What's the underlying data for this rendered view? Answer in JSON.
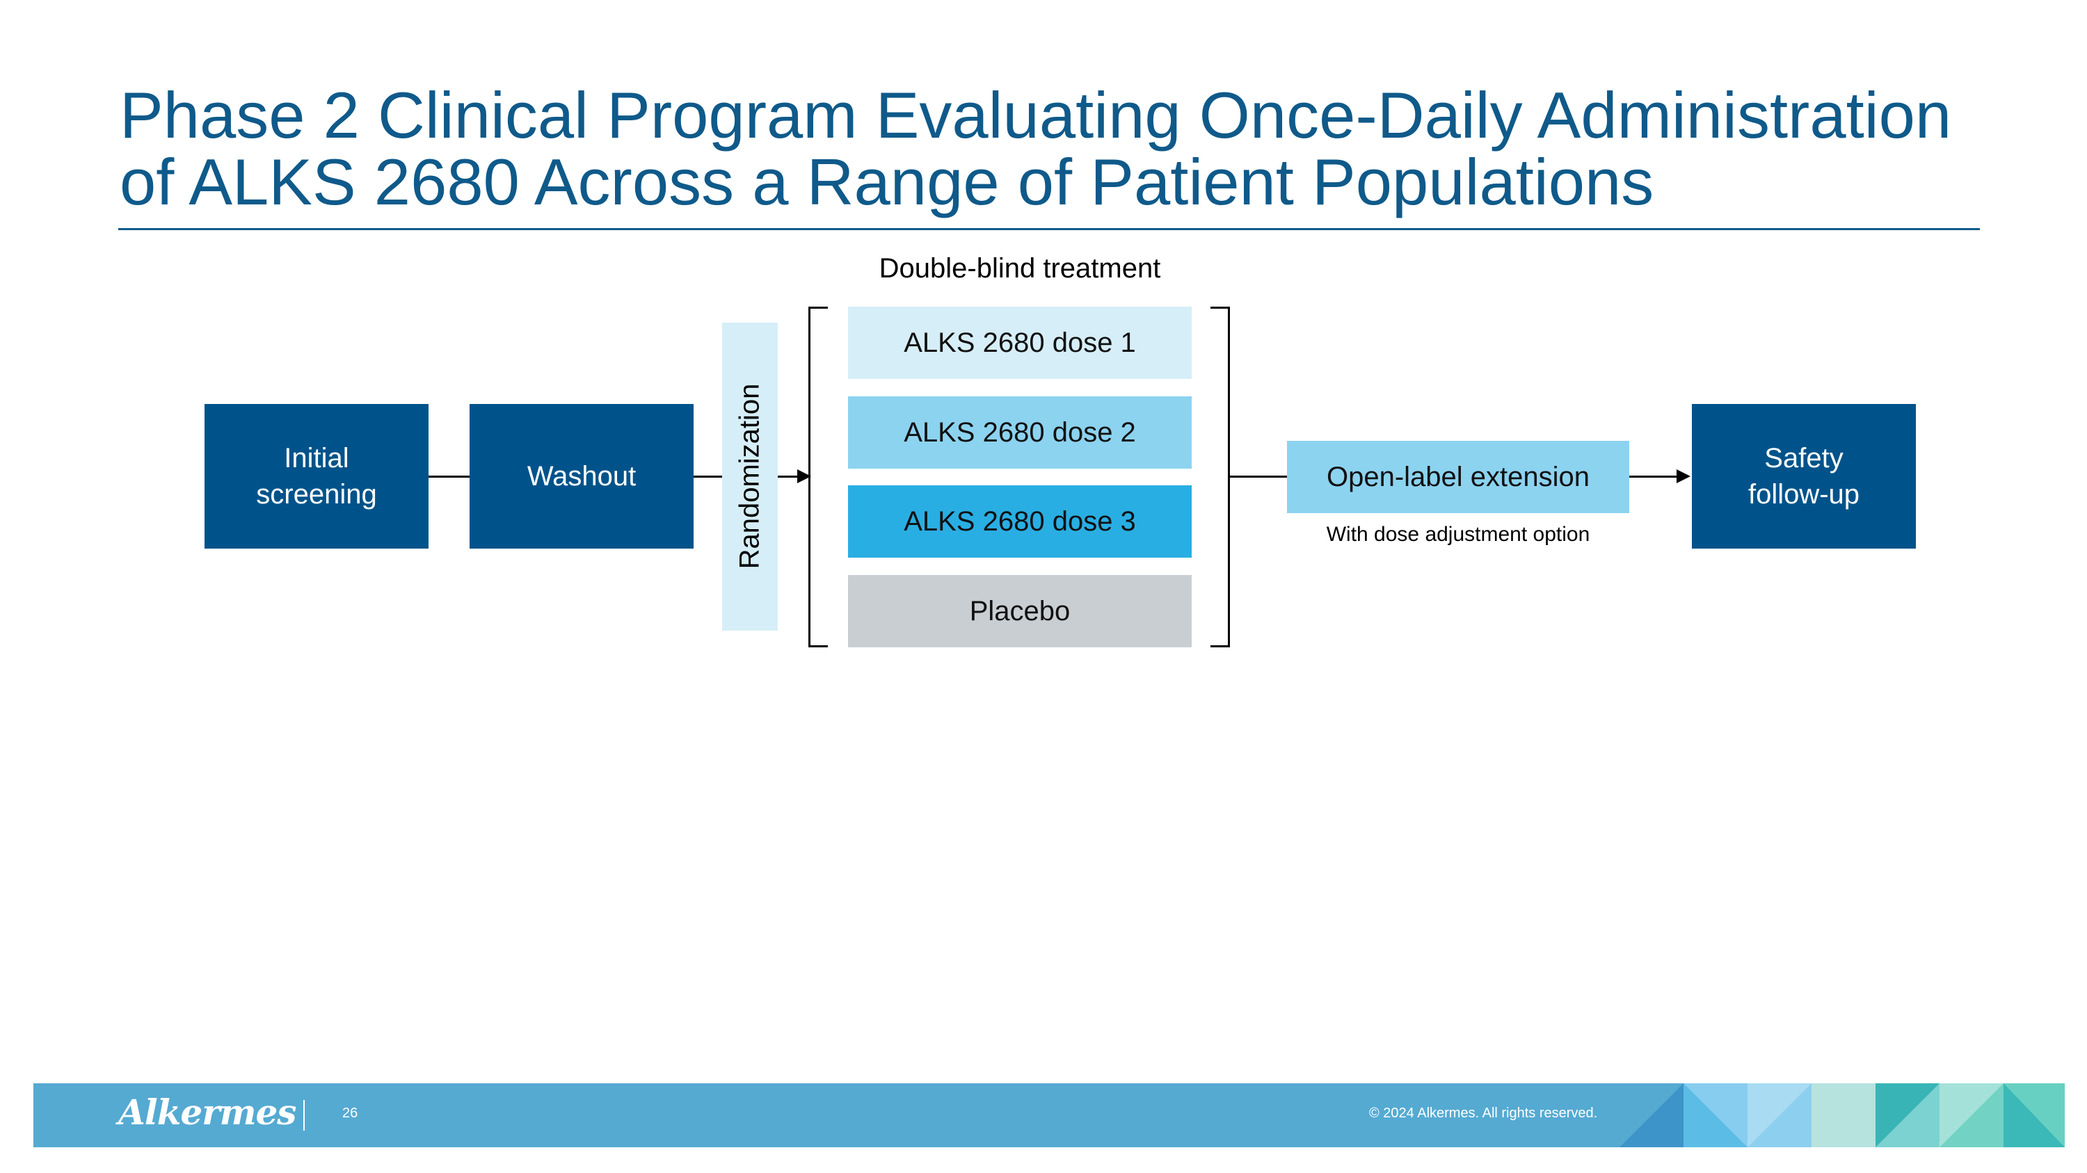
{
  "title": {
    "line1": "Phase 2 Clinical Program Evaluating Once-Daily Administration",
    "line2": "of ALKS 2680 Across a Range of Patient Populations"
  },
  "diagram": {
    "treatment_header": "Double-blind treatment",
    "initial_screening": "Initial screening",
    "washout": "Washout",
    "randomization": "Randomization",
    "arms": [
      {
        "label": "ALKS 2680 dose 1",
        "color": "#d6eef8"
      },
      {
        "label": "ALKS 2680 dose 2",
        "color": "#8cd3f0"
      },
      {
        "label": "ALKS 2680 dose 3",
        "color": "#29aee3"
      },
      {
        "label": "Placebo",
        "color": "#c9ced2"
      }
    ],
    "open_label_extension": "Open-label extension",
    "dose_adjustment_note": "With dose adjustment option",
    "safety_follow_up": "Safety follow-up"
  },
  "colors": {
    "title_blue": "#0f5a8a",
    "dark_box": "#00538a",
    "randomization_fill": "#d6eef8",
    "extension_fill": "#8cd3f0",
    "footer_blue": "#55aad2"
  },
  "footer": {
    "logo": "Alkermes",
    "page_number": "26",
    "copyright": "© 2024 Alkermes. All rights reserved."
  }
}
